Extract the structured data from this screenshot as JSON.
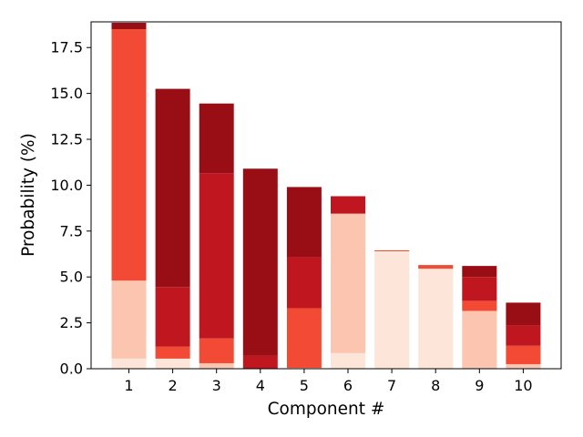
{
  "chart_data": {
    "type": "bar",
    "stacked": true,
    "title": "",
    "xlabel": "Component #",
    "ylabel": "Probability (%)",
    "ylim": [
      0,
      18.9
    ],
    "yticks": [
      "0.0",
      "2.5",
      "5.0",
      "7.5",
      "10.0",
      "12.5",
      "15.0",
      "17.5"
    ],
    "categories": [
      "1",
      "2",
      "3",
      "4",
      "5",
      "6",
      "7",
      "8",
      "9",
      "10"
    ],
    "series": [
      {
        "color": "#fee5d9",
        "values": [
          0.55,
          0.55,
          0.0,
          0.0,
          0.0,
          0.85,
          6.4,
          5.45,
          0.0,
          0.0
        ]
      },
      {
        "color": "#fcc5b0",
        "values": [
          4.25,
          0.0,
          0.3,
          0.0,
          0.05,
          7.6,
          0.0,
          0.0,
          3.15,
          0.25
        ]
      },
      {
        "color": "#f24a35",
        "values": [
          13.7,
          0.65,
          1.35,
          0.0,
          3.25,
          0.0,
          0.05,
          0.2,
          0.55,
          1.0
        ]
      },
      {
        "color": "#c0161f",
        "values": [
          0.0,
          3.25,
          9.0,
          0.7,
          2.8,
          0.95,
          0.0,
          0.0,
          1.3,
          1.1
        ]
      },
      {
        "color": "#990d14",
        "values": [
          0.35,
          10.8,
          3.8,
          10.2,
          3.8,
          0.0,
          0.0,
          0.0,
          0.6,
          1.25
        ]
      }
    ],
    "grid": false,
    "legend": "none"
  }
}
